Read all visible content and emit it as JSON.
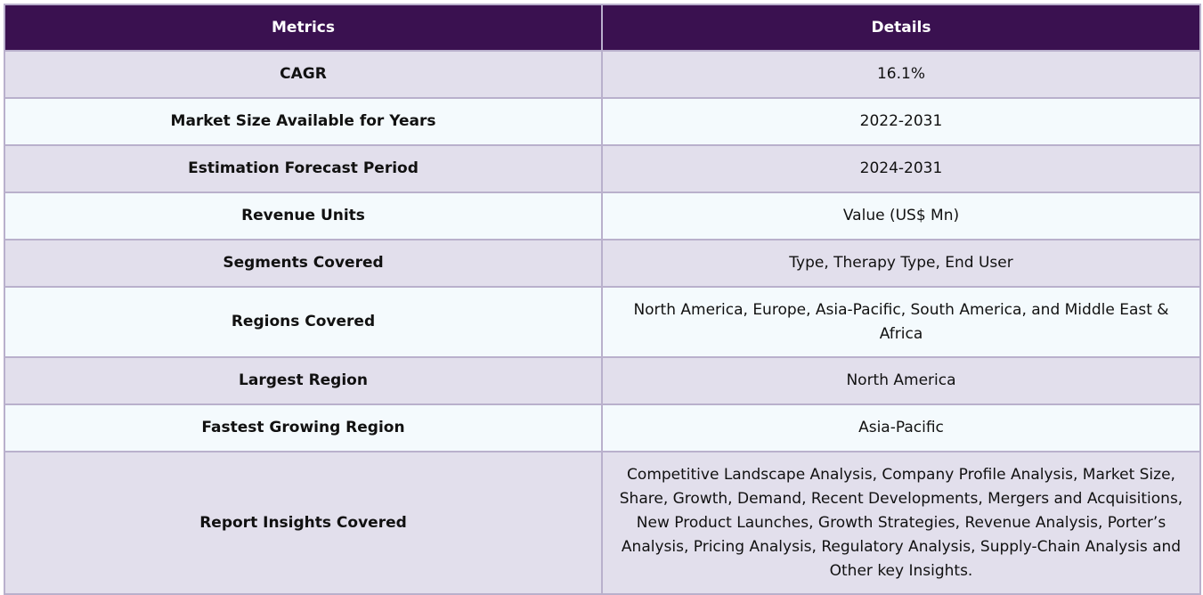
{
  "table": {
    "headers": {
      "metrics": "Metrics",
      "details": "Details"
    },
    "rows": [
      {
        "metric": "CAGR",
        "detail": "16.1%"
      },
      {
        "metric": "Market Size Available for Years",
        "detail": "2022-2031"
      },
      {
        "metric": "Estimation Forecast Period",
        "detail": "2024-2031"
      },
      {
        "metric": "Revenue Units",
        "detail": "Value (US$ Mn)"
      },
      {
        "metric": "Segments Covered",
        "detail": "Type, Therapy Type, End User"
      },
      {
        "metric": "Regions Covered",
        "detail": "North America, Europe, Asia-Pacific, South America, and Middle East & Africa"
      },
      {
        "metric": "Largest Region",
        "detail": "North America"
      },
      {
        "metric": "Fastest Growing Region",
        "detail": "Asia-Pacific"
      },
      {
        "metric": "Report Insights Covered",
        "detail": "Competitive Landscape Analysis, Company Profile Analysis, Market Size, Share, Growth, Demand, Recent Developments, Mergers and Acquisitions, New Product Launches, Growth Strategies, Revenue Analysis, Porter’s Analysis, Pricing Analysis, Regulatory Analysis, Supply-Chain Analysis and Other key Insights."
      }
    ]
  },
  "colors": {
    "header_bg": "#3a1150",
    "row_odd_bg": "#e2dfec",
    "row_even_bg": "#f4fafd",
    "border": "#b9b0cc"
  }
}
